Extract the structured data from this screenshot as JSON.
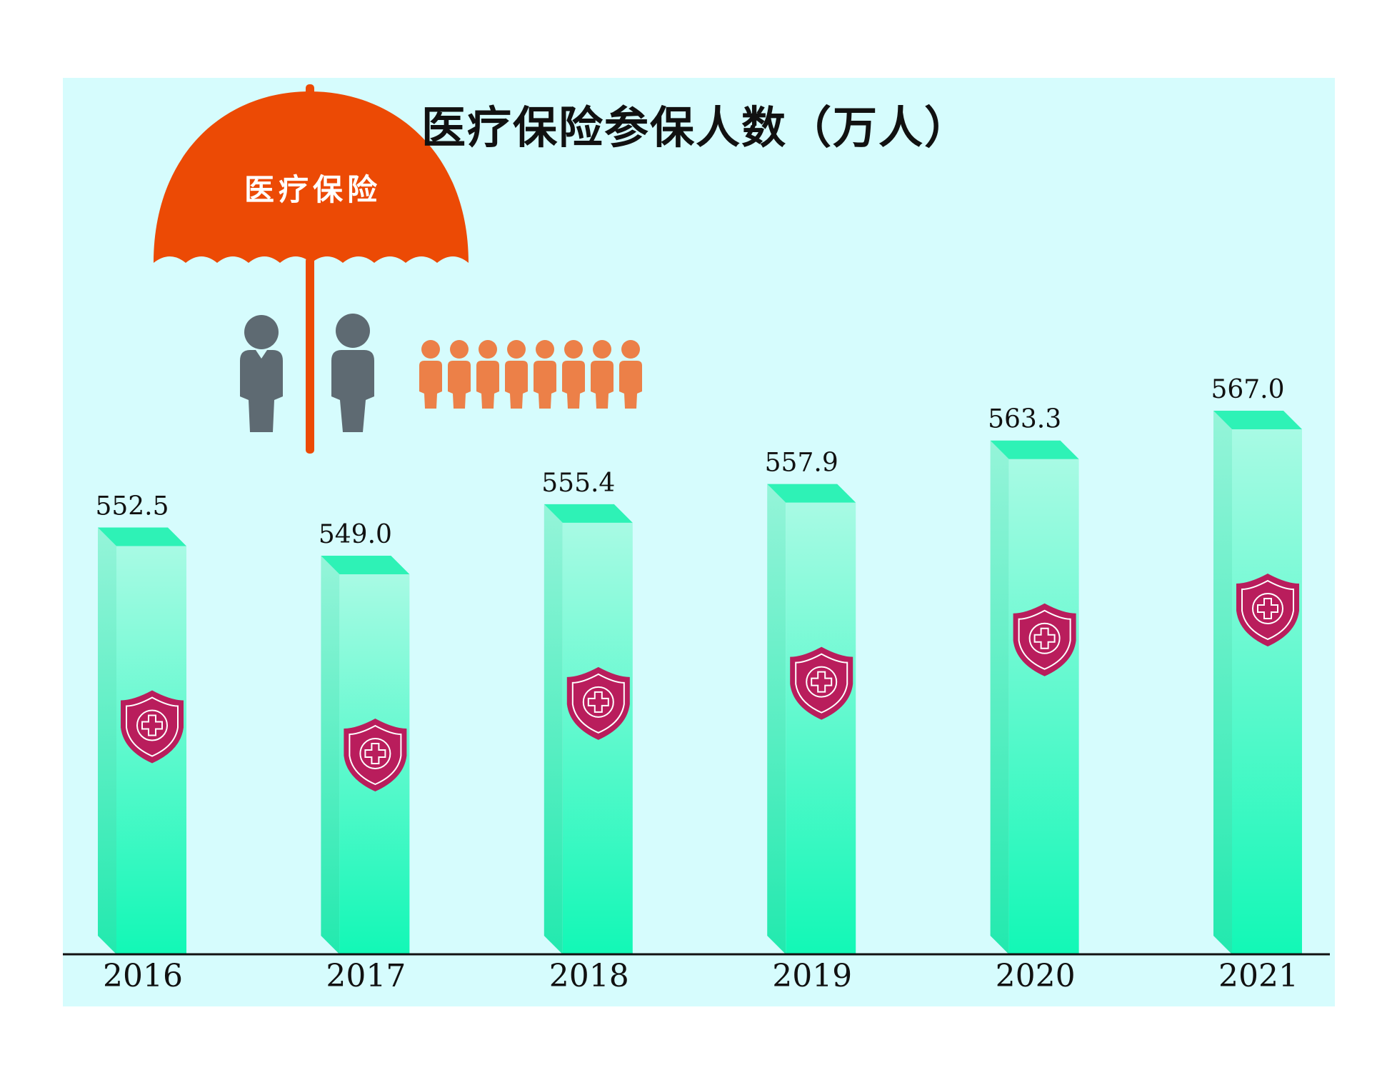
{
  "chart_data": {
    "type": "bar",
    "title": "医疗保险参保人数（万人）",
    "categories": [
      "2016",
      "2017",
      "2018",
      "2019",
      "2020",
      "2021"
    ],
    "values": [
      552.5,
      549.0,
      555.4,
      557.9,
      563.3,
      567.0
    ],
    "value_labels": [
      "552.5",
      "549.0",
      "555.4",
      "557.9",
      "563.3",
      "567.0"
    ],
    "xlabel": "",
    "ylabel": "",
    "grid": false,
    "legend": "none"
  },
  "illustration": {
    "umbrella_text": "医疗保险",
    "umbrella_color": "#ec4a05",
    "person_gray_color": "#5e6a72",
    "person_orange_color": "#ec8048",
    "shield_color": "#b91d5c",
    "bar_top_color": "#2ef2b6",
    "bar_color": "#8cf8da",
    "bar_bottom_color": "#14f7b6",
    "panel_color": "#d6fcfd"
  }
}
